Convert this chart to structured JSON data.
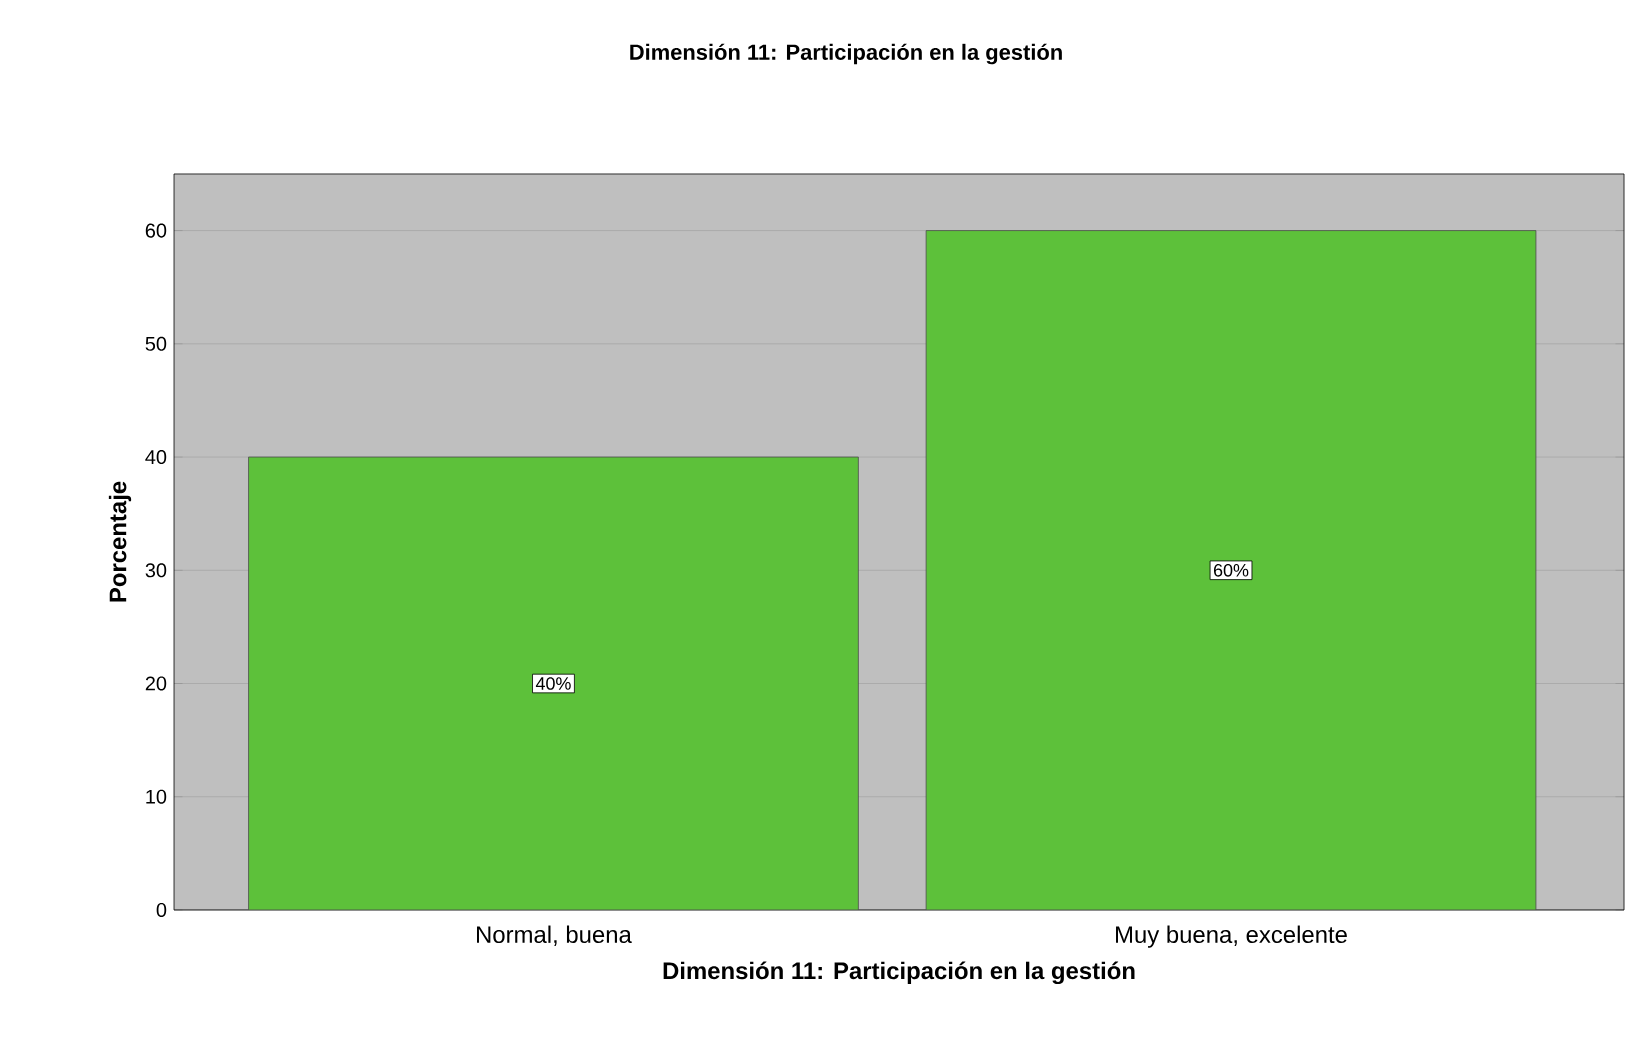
{
  "chart_data": {
    "type": "bar",
    "title": "Dimensión 11: Participación en la gestión",
    "xlabel": "Dimensión 11: Participación en la gestión",
    "ylabel": "Porcentaje",
    "categories": [
      "Normal, buena",
      "Muy buena, excelente"
    ],
    "values": [
      40,
      60
    ],
    "value_labels": [
      "40%",
      "60%"
    ],
    "color": "#5dc13a",
    "ylim": [
      0,
      65
    ],
    "yticks": [
      0,
      10,
      20,
      30,
      40,
      50,
      60
    ],
    "grid": "y"
  }
}
